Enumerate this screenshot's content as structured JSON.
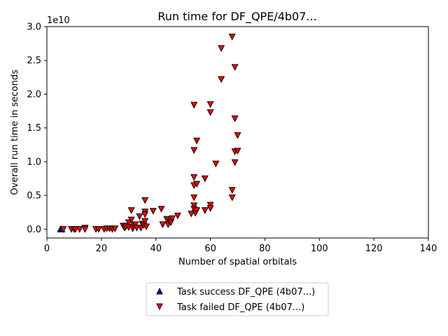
{
  "chart_data": {
    "type": "scatter",
    "title": "Run time for DF_QPE/4b07...",
    "xlabel": "Number of spatial orbitals",
    "ylabel": "Overall run time in seconds",
    "y_offset_label": "1e10",
    "xlim": [
      0,
      140
    ],
    "ylim": [
      -0.13,
      3.0
    ],
    "y_scale": 10000000000.0,
    "xticks": [
      0,
      20,
      40,
      60,
      80,
      100,
      120,
      140
    ],
    "xtick_labels": [
      "0",
      "20",
      "40",
      "60",
      "80",
      "100",
      "120",
      "140"
    ],
    "yticks": [
      0.0,
      0.5,
      1.0,
      1.5,
      2.0,
      2.5,
      3.0
    ],
    "ytick_labels": [
      "0.0",
      "0.5",
      "1.0",
      "1.5",
      "2.0",
      "2.5",
      "3.0"
    ],
    "grid": false,
    "legend_position": "below",
    "series": [
      {
        "name": "Task success DF_QPE (4b07...)",
        "marker": "triangle-up",
        "color": "#0000ff",
        "points": [
          [
            5,
            0.0
          ],
          [
            5.5,
            0.0
          ]
        ]
      },
      {
        "name": "Task failed DF_QPE (4b07...)",
        "marker": "triangle-down",
        "color": "#ff0000",
        "points": [
          [
            6,
            0.0
          ],
          [
            9,
            0.0
          ],
          [
            10,
            0.0
          ],
          [
            10.5,
            0.0
          ],
          [
            12,
            0.0
          ],
          [
            14,
            0.02
          ],
          [
            14,
            0.0
          ],
          [
            18,
            0.0
          ],
          [
            19,
            0.0
          ],
          [
            21,
            0.0
          ],
          [
            22,
            0.01
          ],
          [
            23,
            0.01
          ],
          [
            24,
            0.0
          ],
          [
            25,
            0.01
          ],
          [
            28,
            0.05
          ],
          [
            28.5,
            0.02
          ],
          [
            29,
            0.04
          ],
          [
            30,
            0.1
          ],
          [
            30,
            0.03
          ],
          [
            31,
            0.28
          ],
          [
            31,
            0.14
          ],
          [
            31.5,
            0.01
          ],
          [
            32,
            0.05
          ],
          [
            32.5,
            0.07
          ],
          [
            33,
            0.02
          ],
          [
            34,
            0.19
          ],
          [
            34.5,
            0.02
          ],
          [
            35,
            0.08
          ],
          [
            35.5,
            0.06
          ],
          [
            36,
            0.43
          ],
          [
            36,
            0.26
          ],
          [
            36,
            0.22
          ],
          [
            36,
            0.12
          ],
          [
            36.5,
            0.04
          ],
          [
            39,
            0.27
          ],
          [
            42,
            0.3
          ],
          [
            42.5,
            0.07
          ],
          [
            44,
            0.15
          ],
          [
            44.5,
            0.07
          ],
          [
            45,
            0.12
          ],
          [
            45.5,
            0.1
          ],
          [
            46,
            0.16
          ],
          [
            48,
            0.2
          ],
          [
            53,
            0.23
          ],
          [
            54,
            1.84
          ],
          [
            54,
            1.17
          ],
          [
            54,
            0.77
          ],
          [
            54,
            0.65
          ],
          [
            54,
            0.47
          ],
          [
            54,
            0.35
          ],
          [
            54,
            0.3
          ],
          [
            54.5,
            0.24
          ],
          [
            55,
            1.31
          ],
          [
            55,
            0.67
          ],
          [
            55,
            0.28
          ],
          [
            58,
            0.75
          ],
          [
            58,
            0.28
          ],
          [
            60,
            1.85
          ],
          [
            60,
            1.73
          ],
          [
            60,
            0.36
          ],
          [
            60,
            0.31
          ],
          [
            62,
            0.97
          ],
          [
            64,
            2.68
          ],
          [
            64,
            2.22
          ],
          [
            68,
            2.85
          ],
          [
            68,
            0.58
          ],
          [
            68,
            0.47
          ],
          [
            69,
            2.4
          ],
          [
            69,
            1.64
          ],
          [
            69,
            1.15
          ],
          [
            69,
            0.99
          ],
          [
            70,
            1.39
          ],
          [
            70,
            1.16
          ]
        ]
      }
    ]
  }
}
